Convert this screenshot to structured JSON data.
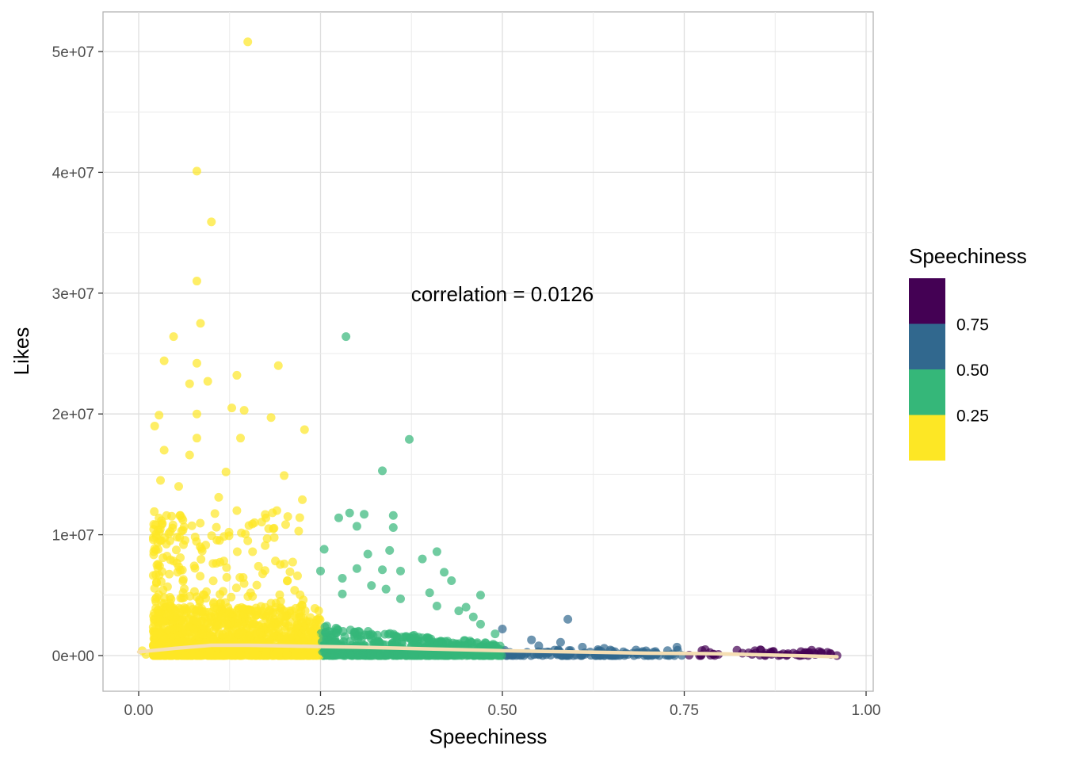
{
  "chart_data": {
    "type": "scatter",
    "title": "",
    "xlabel": "Speechiness",
    "ylabel": "Likes",
    "xlim": [
      -0.1,
      1.0
    ],
    "ylim": [
      -3000000,
      53000000
    ],
    "x_ticks": [
      0.0,
      0.25,
      0.5,
      0.75,
      1.0
    ],
    "x_tick_labels": [
      "0.00",
      "0.25",
      "0.50",
      "0.75",
      "1.00"
    ],
    "y_ticks": [
      0,
      10000000,
      20000000,
      30000000,
      40000000,
      50000000
    ],
    "y_tick_labels": [
      "0e+00",
      "1e+07",
      "2e+07",
      "3e+07",
      "4e+07",
      "5e+07"
    ],
    "grid": true,
    "annotation": {
      "text": "correlation =  0.0126",
      "x": 0.5,
      "y": 30000000
    },
    "legend": {
      "title": "Speechiness",
      "position": "right",
      "bins": [
        {
          "range": [
            0.75,
            1.0
          ],
          "color": "#440154"
        },
        {
          "range": [
            0.5,
            0.75
          ],
          "color": "#31688E"
        },
        {
          "range": [
            0.25,
            0.5
          ],
          "color": "#35B779"
        },
        {
          "range": [
            0.0,
            0.25
          ],
          "color": "#FDE725"
        }
      ],
      "labels": [
        "0.75",
        "0.50",
        "0.25"
      ]
    },
    "smooth_color": "#F5DEB3",
    "smooth_line": {
      "x": [
        0.0,
        0.05,
        0.1,
        0.15,
        0.2,
        0.25,
        0.3,
        0.4,
        0.5,
        0.6,
        0.7,
        0.8,
        0.9,
        0.96
      ],
      "y": [
        300000,
        600000,
        850000,
        850000,
        800000,
        750000,
        700000,
        550000,
        400000,
        300000,
        200000,
        150000,
        0,
        -100000
      ]
    },
    "points": [
      [
        0.15,
        50800000
      ],
      [
        0.08,
        40100000
      ],
      [
        0.1,
        35900000
      ],
      [
        0.08,
        31000000
      ],
      [
        0.085,
        27500000
      ],
      [
        0.285,
        26400000
      ],
      [
        0.048,
        26400000
      ],
      [
        0.035,
        24400000
      ],
      [
        0.08,
        24200000
      ],
      [
        0.192,
        24000000
      ],
      [
        0.135,
        23200000
      ],
      [
        0.07,
        22500000
      ],
      [
        0.095,
        22700000
      ],
      [
        0.128,
        20500000
      ],
      [
        0.145,
        20300000
      ],
      [
        0.08,
        20000000
      ],
      [
        0.028,
        19900000
      ],
      [
        0.022,
        19000000
      ],
      [
        0.182,
        19700000
      ],
      [
        0.228,
        18700000
      ],
      [
        0.372,
        17900000
      ],
      [
        0.08,
        18000000
      ],
      [
        0.14,
        18000000
      ],
      [
        0.035,
        17000000
      ],
      [
        0.07,
        16600000
      ],
      [
        0.12,
        15200000
      ],
      [
        0.2,
        14900000
      ],
      [
        0.335,
        15300000
      ],
      [
        0.03,
        14500000
      ],
      [
        0.055,
        14000000
      ],
      [
        0.11,
        13100000
      ],
      [
        0.225,
        12900000
      ],
      [
        0.19,
        12000000
      ],
      [
        0.135,
        12000000
      ],
      [
        0.29,
        11800000
      ],
      [
        0.31,
        11700000
      ],
      [
        0.275,
        11400000
      ],
      [
        0.35,
        11600000
      ],
      [
        0.255,
        8800000
      ],
      [
        0.3,
        10700000
      ],
      [
        0.35,
        10600000
      ],
      [
        0.15,
        9500000
      ],
      [
        0.185,
        10500000
      ],
      [
        0.22,
        10300000
      ],
      [
        0.345,
        8700000
      ],
      [
        0.41,
        8600000
      ],
      [
        0.315,
        8400000
      ],
      [
        0.39,
        8000000
      ],
      [
        0.3,
        7200000
      ],
      [
        0.335,
        7100000
      ],
      [
        0.36,
        7000000
      ],
      [
        0.42,
        6900000
      ],
      [
        0.25,
        7000000
      ],
      [
        0.28,
        6400000
      ],
      [
        0.47,
        5000000
      ],
      [
        0.43,
        6200000
      ],
      [
        0.32,
        5800000
      ],
      [
        0.34,
        5500000
      ],
      [
        0.4,
        5200000
      ],
      [
        0.28,
        5100000
      ],
      [
        0.36,
        4700000
      ],
      [
        0.41,
        4100000
      ],
      [
        0.45,
        4000000
      ],
      [
        0.44,
        3700000
      ],
      [
        0.46,
        3200000
      ],
      [
        0.59,
        3000000
      ],
      [
        0.47,
        2600000
      ],
      [
        0.5,
        2200000
      ],
      [
        0.49,
        1800000
      ],
      [
        0.54,
        1300000
      ],
      [
        0.58,
        1100000
      ],
      [
        0.55,
        800000
      ],
      [
        0.61,
        700000
      ],
      [
        0.64,
        600000
      ],
      [
        0.74,
        700000
      ],
      [
        0.67,
        200000
      ],
      [
        0.7,
        200000
      ],
      [
        0.79,
        100000
      ],
      [
        0.83,
        200000
      ],
      [
        0.87,
        100000
      ],
      [
        0.9,
        200000
      ],
      [
        0.93,
        100000
      ],
      [
        0.96,
        0
      ],
      [
        0.01,
        100000
      ],
      [
        0.005,
        400000
      ]
    ]
  }
}
